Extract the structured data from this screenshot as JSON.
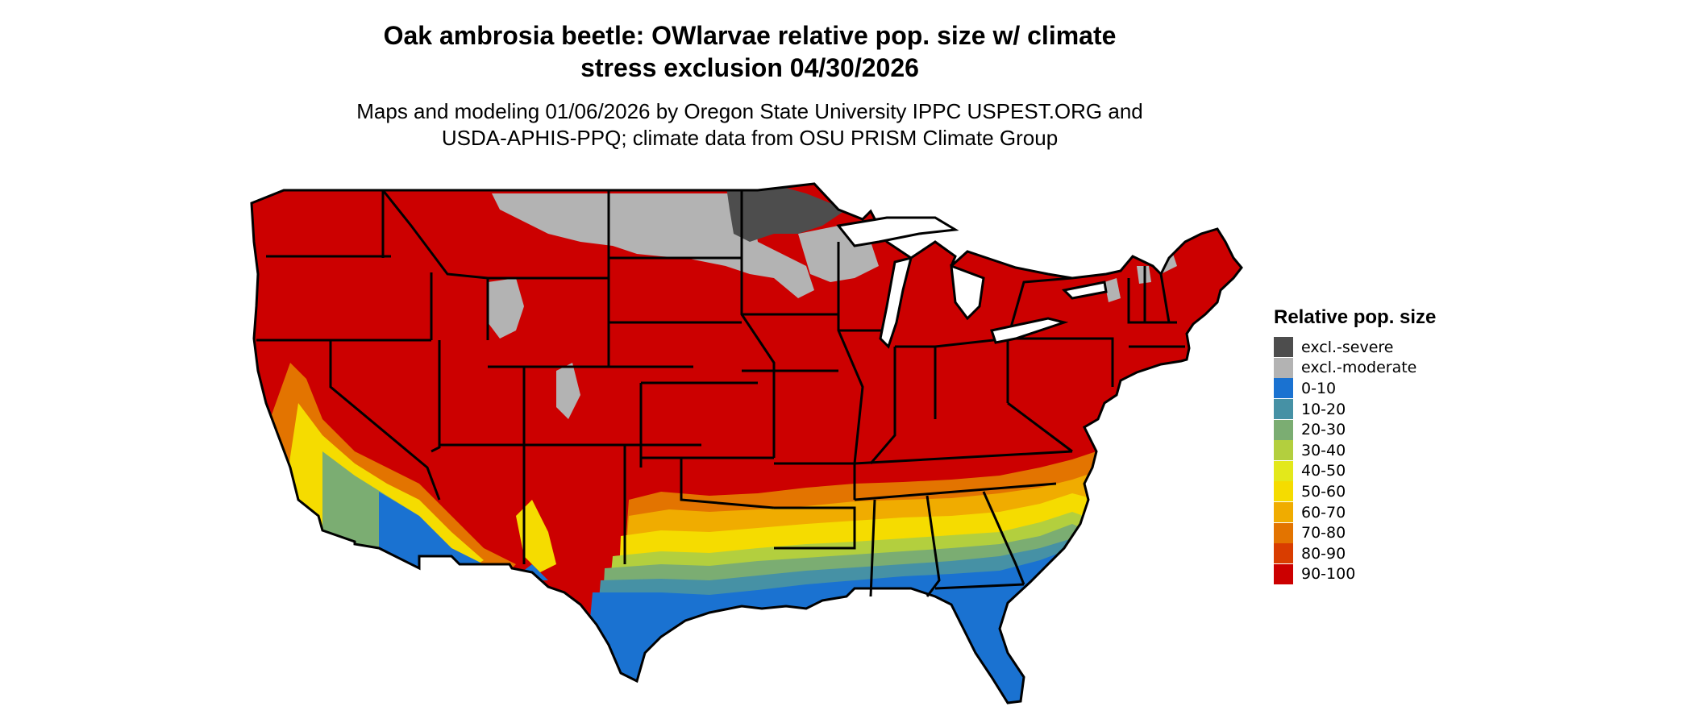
{
  "title_line1": "Oak ambrosia beetle: OWlarvae relative pop. size w/ climate",
  "title_line2": "stress exclusion 04/30/2026",
  "subtitle_line1": "Maps and modeling 01/06/2026 by Oregon State University IPPC USPEST.ORG and",
  "subtitle_line2": "USDA-APHIS-PPQ; climate data from OSU PRISM Climate Group",
  "legend": {
    "title": "Relative pop. size",
    "items": [
      {
        "label": "excl.-severe",
        "color": "#4d4d4d"
      },
      {
        "label": "excl.-moderate",
        "color": "#b3b3b3"
      },
      {
        "label": "0-10",
        "color": "#1a72d1"
      },
      {
        "label": "10-20",
        "color": "#4691a5"
      },
      {
        "label": "20-30",
        "color": "#7bad72"
      },
      {
        "label": "30-40",
        "color": "#b3cf3e"
      },
      {
        "label": "40-50",
        "color": "#e3e81b"
      },
      {
        "label": "50-60",
        "color": "#f5dc00"
      },
      {
        "label": "60-70",
        "color": "#f0ac00"
      },
      {
        "label": "70-80",
        "color": "#e37400"
      },
      {
        "label": "80-90",
        "color": "#d93d00"
      },
      {
        "label": "90-100",
        "color": "#cc0000"
      }
    ]
  }
}
